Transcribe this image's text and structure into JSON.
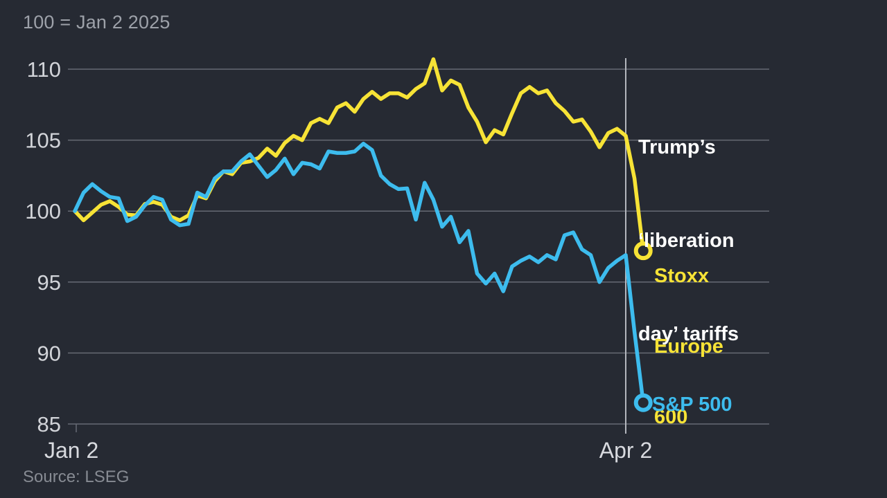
{
  "header": {
    "index_note": "100 = Jan 2 2025"
  },
  "footer": {
    "source": "Source: LSEG"
  },
  "annotation": {
    "lines": [
      "Trump’s",
      "‘liberation",
      "day’ tariffs"
    ]
  },
  "labels": {
    "stoxx_lines": [
      "Stoxx",
      "Europe",
      "600"
    ],
    "sp": "S&P 500"
  },
  "colors": {
    "background": "#262A33",
    "grid": "#666A74",
    "event_line": "#B3B6BD",
    "stoxx": "#F7E336",
    "sp500": "#3DBCEE",
    "tick_label": "#D2D4D9",
    "annotation_text": "#FFFFFF",
    "muted_text": "#9DA1A9"
  },
  "chart_data": {
    "type": "line",
    "title": "100 = Jan 2 2025",
    "note": "Indexed, 100 = Jan 2 2025",
    "source": "LSEG",
    "x_tick_labels": [
      "Jan 2",
      "Apr 2"
    ],
    "x_range": [
      "Jan 2 2025",
      "Apr 4 2025"
    ],
    "yticks": [
      110,
      105,
      100,
      95,
      90,
      85
    ],
    "ylim": [
      85,
      111.5
    ],
    "grid": "horizontal",
    "legend_position": "end-of-line",
    "event": {
      "label": "Trump’s ‘liberation day’ tariffs",
      "x_label": "Apr 2",
      "index": 63
    },
    "series": [
      {
        "name": "Stoxx Europe 600",
        "color": "#F7E336",
        "end_value": 97.2,
        "values": [
          100,
          99.35,
          99.9,
          100.45,
          100.7,
          100.3,
          99.75,
          99.7,
          100.5,
          100.65,
          100.45,
          99.6,
          99.35,
          99.7,
          101.1,
          100.9,
          102.1,
          102.8,
          102.6,
          103.4,
          103.5,
          103.75,
          104.4,
          103.9,
          104.8,
          105.3,
          105.0,
          106.2,
          106.5,
          106.2,
          107.3,
          107.6,
          107.0,
          107.9,
          108.4,
          107.9,
          108.3,
          108.3,
          108.0,
          108.6,
          109.0,
          110.7,
          108.5,
          109.2,
          108.9,
          107.3,
          106.3,
          104.85,
          105.7,
          105.4,
          106.9,
          108.3,
          108.75,
          108.3,
          108.5,
          107.6,
          107.05,
          106.3,
          106.45,
          105.6,
          104.5,
          105.5,
          105.8,
          105.3,
          102.3,
          97.2
        ]
      },
      {
        "name": "S&P 500",
        "color": "#3DBCEE",
        "end_value": 86.5,
        "values": [
          100,
          101.3,
          101.9,
          101.4,
          101.0,
          100.9,
          99.3,
          99.6,
          100.4,
          101.0,
          100.8,
          99.4,
          99.0,
          99.1,
          101.3,
          101.0,
          102.3,
          102.8,
          102.8,
          103.5,
          104.0,
          103.2,
          102.4,
          102.9,
          103.7,
          102.6,
          103.4,
          103.3,
          103.0,
          104.2,
          104.1,
          104.1,
          104.2,
          104.75,
          104.3,
          102.5,
          101.9,
          101.55,
          101.6,
          99.4,
          102.0,
          100.8,
          98.9,
          99.6,
          97.8,
          98.6,
          95.6,
          94.9,
          95.6,
          94.35,
          96.1,
          96.5,
          96.8,
          96.4,
          96.9,
          96.6,
          98.3,
          98.5,
          97.3,
          96.9,
          95.0,
          96.0,
          96.5,
          96.9,
          91.5,
          86.5
        ]
      }
    ]
  }
}
